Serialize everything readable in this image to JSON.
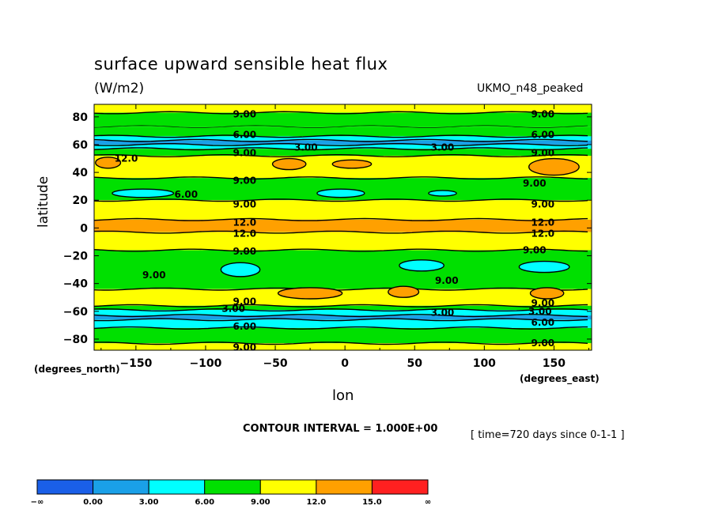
{
  "header": {
    "title": "surface upward sensible heat flux",
    "units": "(W/m2)",
    "dataset": "UKMO_n48_peaked"
  },
  "footer": {
    "contour_interval": "CONTOUR INTERVAL = 1.000E+00",
    "timestamp": "[ time=720 days since 0-1-1 ]"
  },
  "axes": {
    "xlabel": "lon",
    "ylabel": "latitude",
    "x_units": "(degrees_east)",
    "y_units": "(degrees_north)"
  },
  "chart_data": {
    "type": "heatmap",
    "title": "surface upward sensible heat flux",
    "subtitle": "(W/m2)",
    "xlabel": "lon",
    "ylabel": "latitude",
    "xlim": [
      -180,
      177
    ],
    "ylim": [
      -88,
      89
    ],
    "x_ticks": [
      -150,
      -100,
      -50,
      0,
      50,
      100,
      150
    ],
    "x_tick_labels": [
      "−150",
      "−100",
      "−50",
      "0",
      "50",
      "100",
      "150"
    ],
    "y_ticks": [
      80,
      60,
      40,
      20,
      0,
      -20,
      -40,
      -60,
      -80
    ],
    "y_tick_labels": [
      "80",
      "60",
      "40",
      "20",
      "0",
      "−20",
      "−40",
      "−60",
      "−80"
    ],
    "contour_interval": 1.0,
    "color_levels": [
      {
        "label": "−∞",
        "color": "#1a5fe8"
      },
      {
        "label": "0.00",
        "color": "#1aa0e8"
      },
      {
        "label": "3.00",
        "color": "#00ffff"
      },
      {
        "label": "6.00",
        "color": "#00e000"
      },
      {
        "label": "9.00",
        "color": "#ffff00"
      },
      {
        "label": "12.0",
        "color": "#ffa000"
      },
      {
        "label": "15.0",
        "color": "#ff2020"
      },
      {
        "label": "∞",
        "color": null
      }
    ],
    "zonal_bands": [
      {
        "lat_top": 89,
        "lat_bottom": 83,
        "level": 9
      },
      {
        "lat_top": 83,
        "lat_bottom": 73,
        "level": 6
      },
      {
        "lat_top": 73,
        "lat_bottom": 66,
        "level": 6
      },
      {
        "lat_top": 66,
        "lat_bottom": 63,
        "level": 3
      },
      {
        "lat_top": 63,
        "lat_bottom": 60,
        "level": 0
      },
      {
        "lat_top": 60,
        "lat_bottom": 57,
        "level": 3
      },
      {
        "lat_top": 57,
        "lat_bottom": 52,
        "level": 6
      },
      {
        "lat_top": 52,
        "lat_bottom": 36,
        "level": 9
      },
      {
        "lat_top": 36,
        "lat_bottom": 20,
        "level": 6
      },
      {
        "lat_top": 20,
        "lat_bottom": 6,
        "level": 9
      },
      {
        "lat_top": 6,
        "lat_bottom": -3,
        "level": 12
      },
      {
        "lat_top": -3,
        "lat_bottom": -16,
        "level": 9
      },
      {
        "lat_top": -16,
        "lat_bottom": -44,
        "level": 6
      },
      {
        "lat_top": -44,
        "lat_bottom": -56,
        "level": 9
      },
      {
        "lat_top": -56,
        "lat_bottom": -59,
        "level": 6
      },
      {
        "lat_top": -59,
        "lat_bottom": -63,
        "level": 3
      },
      {
        "lat_top": -63,
        "lat_bottom": -66,
        "level": 0
      },
      {
        "lat_top": -66,
        "lat_bottom": -72,
        "level": 3
      },
      {
        "lat_top": -72,
        "lat_bottom": -83,
        "level": 6
      },
      {
        "lat_top": -83,
        "lat_bottom": -88,
        "level": 9
      }
    ],
    "blobs": [
      {
        "lon": -170,
        "lat": 47,
        "rlon": 9,
        "rlat": 4,
        "level": 12
      },
      {
        "lon": -40,
        "lat": 46,
        "rlon": 12,
        "rlat": 4,
        "level": 12
      },
      {
        "lon": 5,
        "lat": 46,
        "rlon": 14,
        "rlat": 3,
        "level": 12
      },
      {
        "lon": 150,
        "lat": 44,
        "rlon": 18,
        "rlat": 6,
        "level": 12
      },
      {
        "lon": -145,
        "lat": 25,
        "rlon": 22,
        "rlat": 3,
        "level": 3
      },
      {
        "lon": -3,
        "lat": 25,
        "rlon": 17,
        "rlat": 3,
        "level": 3
      },
      {
        "lon": 70,
        "lat": 25,
        "rlon": 10,
        "rlat": 2,
        "level": 3
      },
      {
        "lon": -75,
        "lat": -30,
        "rlon": 14,
        "rlat": 5,
        "level": 3
      },
      {
        "lon": 55,
        "lat": -27,
        "rlon": 16,
        "rlat": 4,
        "level": 3
      },
      {
        "lon": 143,
        "lat": -28,
        "rlon": 18,
        "rlat": 4,
        "level": 3
      },
      {
        "lon": -25,
        "lat": -47,
        "rlon": 23,
        "rlat": 4,
        "level": 12
      },
      {
        "lon": 42,
        "lat": -46,
        "rlon": 11,
        "rlat": 4,
        "level": 12
      },
      {
        "lon": 145,
        "lat": -47,
        "rlon": 12,
        "rlat": 4,
        "level": 12
      }
    ],
    "contour_labels": [
      {
        "text": "9.00",
        "lon": -72,
        "lat": 82
      },
      {
        "text": "9.00",
        "lon": 142,
        "lat": 82
      },
      {
        "text": "6.00",
        "lon": -72,
        "lat": 67
      },
      {
        "text": "6.00",
        "lon": 142,
        "lat": 67
      },
      {
        "text": "3.00",
        "lon": -28,
        "lat": 58
      },
      {
        "text": "3.00",
        "lon": 70,
        "lat": 58
      },
      {
        "text": "9.00",
        "lon": -72,
        "lat": 54
      },
      {
        "text": "9.00",
        "lon": 142,
        "lat": 54
      },
      {
        "text": "12.0",
        "lon": -157,
        "lat": 50
      },
      {
        "text": "6.00",
        "lon": -114,
        "lat": 24
      },
      {
        "text": "9.00",
        "lon": -72,
        "lat": 34
      },
      {
        "text": "9.00",
        "lon": 136,
        "lat": 32
      },
      {
        "text": "9.00",
        "lon": -72,
        "lat": 17
      },
      {
        "text": "9.00",
        "lon": 142,
        "lat": 17
      },
      {
        "text": "12.0",
        "lon": -72,
        "lat": 4
      },
      {
        "text": "12.0",
        "lon": 142,
        "lat": 4
      },
      {
        "text": "12.0",
        "lon": -72,
        "lat": -4
      },
      {
        "text": "12.0",
        "lon": 142,
        "lat": -4
      },
      {
        "text": "9.00",
        "lon": -72,
        "lat": -17
      },
      {
        "text": "9.00",
        "lon": 136,
        "lat": -16
      },
      {
        "text": "9.00",
        "lon": -137,
        "lat": -34
      },
      {
        "text": "9.00",
        "lon": 73,
        "lat": -38
      },
      {
        "text": "9.00",
        "lon": -72,
        "lat": -53
      },
      {
        "text": "3.00",
        "lon": -80,
        "lat": -58
      },
      {
        "text": "3.00",
        "lon": 70,
        "lat": -61
      },
      {
        "text": "3.00",
        "lon": 140,
        "lat": -60
      },
      {
        "text": "9.00",
        "lon": 142,
        "lat": -54
      },
      {
        "text": "6.00",
        "lon": -72,
        "lat": -71
      },
      {
        "text": "6.00",
        "lon": 142,
        "lat": -68
      },
      {
        "text": "9.00",
        "lon": -72,
        "lat": -86
      },
      {
        "text": "9.00",
        "lon": 142,
        "lat": -83
      }
    ]
  }
}
